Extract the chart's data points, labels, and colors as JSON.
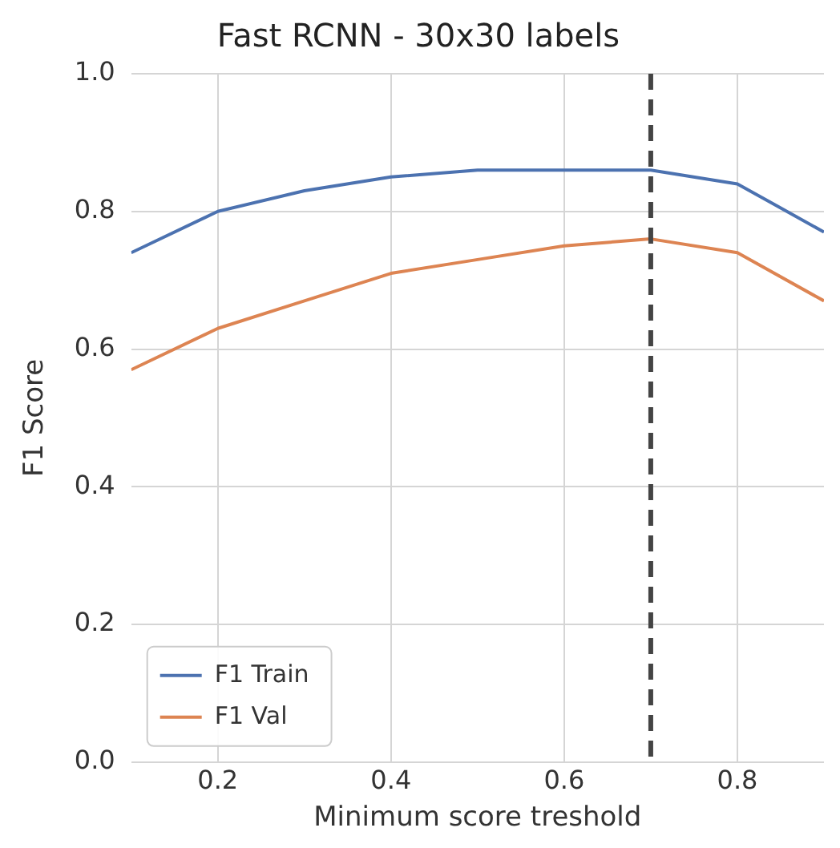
{
  "chart_data": {
    "type": "line",
    "title": "Fast RCNN - 30x30 labels",
    "xlabel": "Minimum score treshold",
    "ylabel": "F1 Score",
    "x": [
      0.1,
      0.2,
      0.3,
      0.4,
      0.5,
      0.6,
      0.7,
      0.8,
      0.9
    ],
    "series": [
      {
        "name": "F1 Train",
        "color": "#4c72b0",
        "values": [
          0.74,
          0.8,
          0.83,
          0.85,
          0.86,
          0.86,
          0.86,
          0.84,
          0.77
        ]
      },
      {
        "name": "F1 Val",
        "color": "#dd8452",
        "values": [
          0.57,
          0.63,
          0.67,
          0.71,
          0.73,
          0.75,
          0.76,
          0.74,
          0.67
        ]
      }
    ],
    "xlim": [
      0.1,
      0.9
    ],
    "xticks": [
      0.2,
      0.4,
      0.6,
      0.8
    ],
    "ylim": [
      0,
      1
    ],
    "yticks": [
      {
        "value": 0,
        "label": "0.0"
      },
      0.2,
      0.4,
      0.6,
      0.8,
      {
        "value": 1,
        "label": "1.0"
      }
    ],
    "ref_lines": [
      {
        "axis": "x",
        "value": 0.7,
        "color": "#444444",
        "line_style": "dashed"
      }
    ],
    "grid": true,
    "legend": "bottom left",
    "marker": "none",
    "line_style": "solid"
  }
}
